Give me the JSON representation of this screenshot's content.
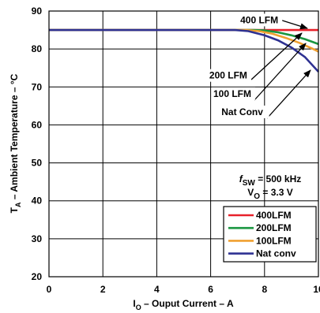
{
  "chart_data": {
    "type": "line",
    "xlabel": {
      "main": "I",
      "sub": "O",
      "rest": " – Ouput Current  – A"
    },
    "ylabel": {
      "main": "T",
      "sub": "A",
      "rest": " – Ambient Temperature – °C"
    },
    "xlim": [
      0,
      10
    ],
    "ylim": [
      20,
      90
    ],
    "x_ticks": [
      0,
      2,
      4,
      6,
      8,
      10
    ],
    "x_tick_labels": [
      "0",
      "2",
      "4",
      "6",
      "8",
      "10"
    ],
    "y_ticks": [
      20,
      30,
      40,
      50,
      60,
      70,
      80,
      90
    ],
    "y_tick_labels": [
      "20",
      "30",
      "40",
      "50",
      "60",
      "70",
      "80",
      "90"
    ],
    "grid": true,
    "series": [
      {
        "name": "400LFM",
        "color": "#e8202a",
        "x": [
          0,
          10
        ],
        "y": [
          85,
          85
        ]
      },
      {
        "name": "200LFM",
        "color": "#1a9640",
        "x": [
          0,
          7.6,
          8.0,
          8.5,
          9.0,
          9.5,
          10.0
        ],
        "y": [
          85,
          85,
          84.9,
          84.4,
          83.6,
          82.6,
          81.3
        ]
      },
      {
        "name": "100LFM",
        "color": "#f0a030",
        "x": [
          0,
          7.3,
          7.8,
          8.3,
          8.8,
          9.3,
          9.8,
          10.0
        ],
        "y": [
          85,
          85,
          84.7,
          84.0,
          82.9,
          81.6,
          80.0,
          79.3
        ]
      },
      {
        "name": "Nat conv",
        "color": "#2e3192",
        "x": [
          0,
          6.9,
          7.4,
          8.0,
          8.5,
          9.0,
          9.5,
          10.0
        ],
        "y": [
          85,
          85,
          84.7,
          83.6,
          82.3,
          80.4,
          77.9,
          74.0
        ]
      }
    ],
    "annotations": [
      {
        "text": "400 LFM",
        "x": 7.1,
        "y": 86.8
      },
      {
        "text": "200 LFM",
        "x": 5.95,
        "y": 72.2
      },
      {
        "text": "100 LFM",
        "x": 6.1,
        "y": 67.4
      },
      {
        "text": "Nat Conv",
        "x": 6.4,
        "y": 62.6
      }
    ],
    "conditions": {
      "fsw": {
        "f": "f",
        "sub": "SW",
        "rest": " = 500 kHz"
      },
      "vo": {
        "main": "V",
        "sub": "O",
        "rest": " = 3.3 V"
      }
    },
    "legend_position": "bottom-right"
  }
}
